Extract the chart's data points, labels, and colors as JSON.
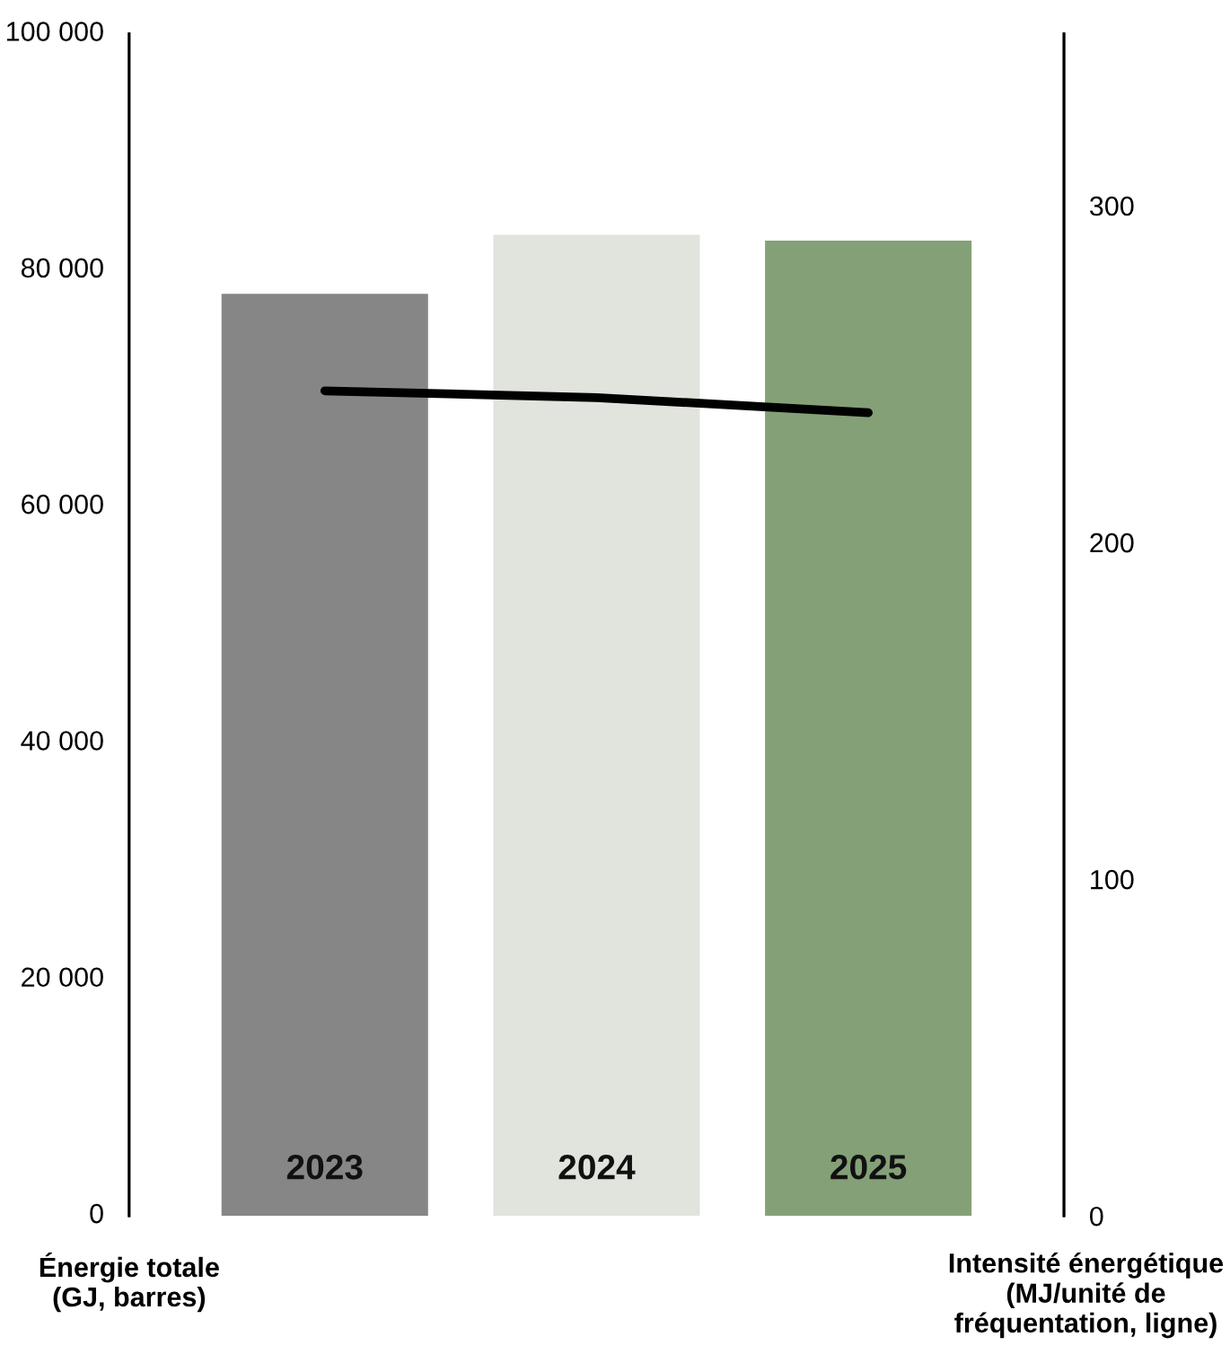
{
  "chart_data": {
    "type": "bar",
    "categories": [
      "2023",
      "2024",
      "2025"
    ],
    "series": [
      {
        "colors": [
          "#868686",
          "#e1e4dc",
          "#84a077"
        ],
        "values": [
          78000,
          83000,
          82500
        ]
      },
      {
        "type": "line",
        "axis": "y2",
        "color": "#000000",
        "values": [
          245,
          243,
          238.5
        ]
      }
    ],
    "ylabel": "Énergie totale\n(GJ, barres)",
    "y2label": "Intensité énergétique\n(MJ/unité de\nfréquentation, ligne)",
    "ylim": [
      0,
      100000
    ],
    "yticks": [
      0,
      {
        "value": 20000,
        "label": "20 000"
      },
      {
        "value": 40000,
        "label": "40 000"
      },
      {
        "value": 60000,
        "label": "60 000"
      },
      {
        "value": 80000,
        "label": "80 000"
      },
      {
        "value": 100000,
        "label": "100 000"
      }
    ],
    "y2lim": [
      0,
      351
    ],
    "y2ticks": [
      0,
      100,
      200,
      300
    ],
    "grid": false,
    "legend": false,
    "marker": "none",
    "line_style": "solid"
  }
}
